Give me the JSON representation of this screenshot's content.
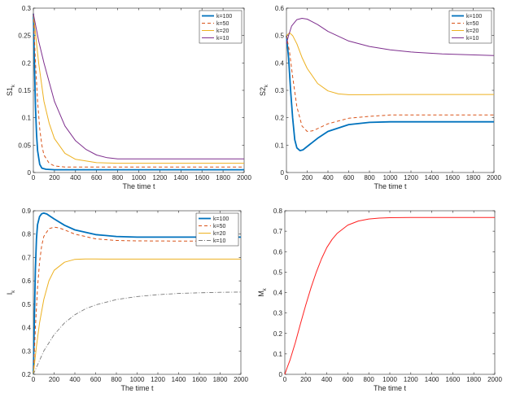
{
  "figure": {
    "colors": {
      "k100": "#0072BD",
      "k50": "#D95319",
      "k20": "#EDB120",
      "k10_purple": "#7E2F8E",
      "k10_gray": "#7a7a7a",
      "m": "#ff2020"
    }
  },
  "chart_data": [
    {
      "type": "line",
      "id": "s1",
      "ylabel": "S1",
      "ylabel_sub": "k",
      "xlabel": "The time t",
      "xlim": [
        0,
        2000
      ],
      "ylim": [
        0,
        0.3
      ],
      "xticks": [
        0,
        200,
        400,
        600,
        800,
        1000,
        1200,
        1400,
        1600,
        1800,
        2000
      ],
      "yticks": [
        0,
        0.05,
        0.1,
        0.15,
        0.2,
        0.25,
        0.3
      ],
      "ytick_labels": [
        "0",
        "0.05",
        "0.1",
        "0.15",
        "0.2",
        "0.25",
        "0.3"
      ],
      "legend": "top-right",
      "series": [
        {
          "name": "k=100",
          "color": "#0072BD",
          "dash": "",
          "width": 1.8,
          "x": [
            0,
            10,
            20,
            30,
            40,
            60,
            80,
            120,
            200,
            400,
            1000,
            2000
          ],
          "y": [
            0.29,
            0.2,
            0.12,
            0.07,
            0.04,
            0.015,
            0.008,
            0.006,
            0.005,
            0.005,
            0.005,
            0.005
          ]
        },
        {
          "name": "k=50",
          "color": "#D95319",
          "dash": "4,3",
          "width": 1,
          "x": [
            0,
            20,
            40,
            60,
            80,
            100,
            150,
            200,
            300,
            500,
            1000,
            2000
          ],
          "y": [
            0.29,
            0.2,
            0.13,
            0.08,
            0.05,
            0.032,
            0.017,
            0.012,
            0.01,
            0.01,
            0.01,
            0.01
          ]
        },
        {
          "name": "k=20",
          "color": "#EDB120",
          "dash": "",
          "width": 1,
          "x": [
            0,
            50,
            100,
            150,
            200,
            300,
            400,
            600,
            800,
            1200,
            2000
          ],
          "y": [
            0.29,
            0.2,
            0.13,
            0.09,
            0.062,
            0.035,
            0.024,
            0.018,
            0.017,
            0.017,
            0.017
          ]
        },
        {
          "name": "k=10",
          "color": "#7E2F8E",
          "dash": "",
          "width": 1,
          "x": [
            0,
            50,
            100,
            200,
            300,
            400,
            500,
            600,
            700,
            800,
            1000,
            1500,
            2000
          ],
          "y": [
            0.29,
            0.24,
            0.2,
            0.13,
            0.085,
            0.058,
            0.042,
            0.032,
            0.027,
            0.025,
            0.025,
            0.025,
            0.025
          ]
        }
      ]
    },
    {
      "type": "line",
      "id": "s2",
      "ylabel": "S2",
      "ylabel_sub": "k",
      "xlabel": "The time t",
      "xlim": [
        0,
        2000
      ],
      "ylim": [
        0,
        0.6
      ],
      "xticks": [
        0,
        200,
        400,
        600,
        800,
        1000,
        1200,
        1400,
        1600,
        1800,
        2000
      ],
      "yticks": [
        0,
        0.1,
        0.2,
        0.3,
        0.4,
        0.5,
        0.6
      ],
      "ytick_labels": [
        "0",
        "0.1",
        "0.2",
        "0.3",
        "0.4",
        "0.5",
        "0.6"
      ],
      "legend": "top-right",
      "series": [
        {
          "name": "k=100",
          "color": "#0072BD",
          "dash": "",
          "width": 1.8,
          "x": [
            0,
            20,
            40,
            60,
            80,
            100,
            130,
            160,
            200,
            300,
            400,
            600,
            800,
            1000,
            1500,
            2000
          ],
          "y": [
            0.5,
            0.42,
            0.3,
            0.2,
            0.12,
            0.09,
            0.08,
            0.083,
            0.095,
            0.125,
            0.15,
            0.175,
            0.183,
            0.185,
            0.185,
            0.185
          ]
        },
        {
          "name": "k=50",
          "color": "#D95319",
          "dash": "4,3",
          "width": 1,
          "x": [
            0,
            30,
            60,
            100,
            150,
            200,
            250,
            300,
            400,
            600,
            800,
            1000,
            1500,
            2000
          ],
          "y": [
            0.5,
            0.44,
            0.35,
            0.24,
            0.17,
            0.15,
            0.152,
            0.16,
            0.178,
            0.198,
            0.205,
            0.21,
            0.21,
            0.21
          ]
        },
        {
          "name": "k=20",
          "color": "#EDB120",
          "dash": "",
          "width": 1,
          "x": [
            0,
            30,
            60,
            100,
            150,
            200,
            300,
            400,
            500,
            600,
            800,
            1000,
            1500,
            2000
          ],
          "y": [
            0.5,
            0.51,
            0.5,
            0.47,
            0.42,
            0.38,
            0.325,
            0.298,
            0.287,
            0.284,
            0.284,
            0.285,
            0.285,
            0.285
          ]
        },
        {
          "name": "k=10",
          "color": "#7E2F8E",
          "dash": "",
          "width": 1,
          "x": [
            0,
            20,
            50,
            100,
            150,
            200,
            300,
            400,
            600,
            800,
            1000,
            1200,
            1500,
            2000
          ],
          "y": [
            0.47,
            0.5,
            0.535,
            0.558,
            0.563,
            0.56,
            0.54,
            0.515,
            0.48,
            0.46,
            0.448,
            0.44,
            0.433,
            0.427
          ]
        }
      ]
    },
    {
      "type": "line",
      "id": "i",
      "ylabel": "I",
      "ylabel_sub": "k",
      "xlabel": "The time t",
      "xlim": [
        0,
        2000
      ],
      "ylim": [
        0.2,
        0.9
      ],
      "xticks": [
        0,
        200,
        400,
        600,
        800,
        1000,
        1200,
        1400,
        1600,
        1800,
        2000
      ],
      "yticks": [
        0.2,
        0.3,
        0.4,
        0.5,
        0.6,
        0.7,
        0.8,
        0.9
      ],
      "ytick_labels": [
        "0.2",
        "0.3",
        "0.4",
        "0.5",
        "0.6",
        "0.7",
        "0.8",
        "0.9"
      ],
      "legend": "top-right",
      "series": [
        {
          "name": "k=100",
          "color": "#0072BD",
          "dash": "",
          "width": 1.8,
          "x": [
            0,
            10,
            20,
            30,
            40,
            60,
            80,
            100,
            130,
            160,
            200,
            300,
            400,
            600,
            800,
            1000,
            1500,
            2000
          ],
          "y": [
            0.2,
            0.45,
            0.65,
            0.78,
            0.84,
            0.875,
            0.887,
            0.89,
            0.886,
            0.877,
            0.865,
            0.838,
            0.818,
            0.798,
            0.79,
            0.787,
            0.787,
            0.787
          ]
        },
        {
          "name": "k=50",
          "color": "#D95319",
          "dash": "4,3",
          "width": 1,
          "x": [
            0,
            20,
            40,
            60,
            80,
            100,
            150,
            200,
            250,
            300,
            400,
            600,
            800,
            1000,
            1500,
            2000
          ],
          "y": [
            0.2,
            0.4,
            0.57,
            0.68,
            0.75,
            0.79,
            0.823,
            0.83,
            0.826,
            0.818,
            0.8,
            0.78,
            0.773,
            0.771,
            0.77,
            0.77
          ]
        },
        {
          "name": "k=20",
          "color": "#EDB120",
          "dash": "",
          "width": 1,
          "x": [
            0,
            30,
            60,
            100,
            150,
            200,
            300,
            400,
            500,
            600,
            700,
            800,
            1000,
            1500,
            2000
          ],
          "y": [
            0.2,
            0.32,
            0.42,
            0.52,
            0.6,
            0.645,
            0.68,
            0.692,
            0.694,
            0.694,
            0.693,
            0.693,
            0.693,
            0.693,
            0.693
          ]
        },
        {
          "name": "k=10",
          "color": "#7a7a7a",
          "dash": "5,2,1,2",
          "width": 0.9,
          "x": [
            0,
            50,
            100,
            200,
            300,
            400,
            500,
            600,
            800,
            1000,
            1200,
            1400,
            1600,
            1800,
            2000
          ],
          "y": [
            0.2,
            0.25,
            0.3,
            0.37,
            0.42,
            0.455,
            0.48,
            0.497,
            0.52,
            0.533,
            0.541,
            0.546,
            0.549,
            0.551,
            0.552
          ]
        }
      ]
    },
    {
      "type": "line",
      "id": "m",
      "ylabel": "M",
      "ylabel_sub": "k",
      "xlabel": "The time t",
      "xlim": [
        0,
        2000
      ],
      "ylim": [
        0,
        0.8
      ],
      "xticks": [
        0,
        200,
        400,
        600,
        800,
        1000,
        1200,
        1400,
        1600,
        1800,
        2000
      ],
      "yticks": [
        0,
        0.1,
        0.2,
        0.3,
        0.4,
        0.5,
        0.6,
        0.7,
        0.8
      ],
      "ytick_labels": [
        "0",
        "0.1",
        "0.2",
        "0.3",
        "0.4",
        "0.5",
        "0.6",
        "0.7",
        "0.8"
      ],
      "legend": "none",
      "series": [
        {
          "name": "M",
          "color": "#ff2020",
          "dash": "",
          "width": 1,
          "x": [
            0,
            20,
            50,
            100,
            150,
            200,
            250,
            300,
            350,
            400,
            450,
            500,
            600,
            700,
            800,
            900,
            1000,
            1200,
            1500,
            2000
          ],
          "y": [
            0,
            0.03,
            0.07,
            0.155,
            0.25,
            0.34,
            0.425,
            0.5,
            0.565,
            0.62,
            0.66,
            0.69,
            0.73,
            0.75,
            0.76,
            0.764,
            0.766,
            0.767,
            0.767,
            0.767
          ]
        }
      ]
    }
  ]
}
